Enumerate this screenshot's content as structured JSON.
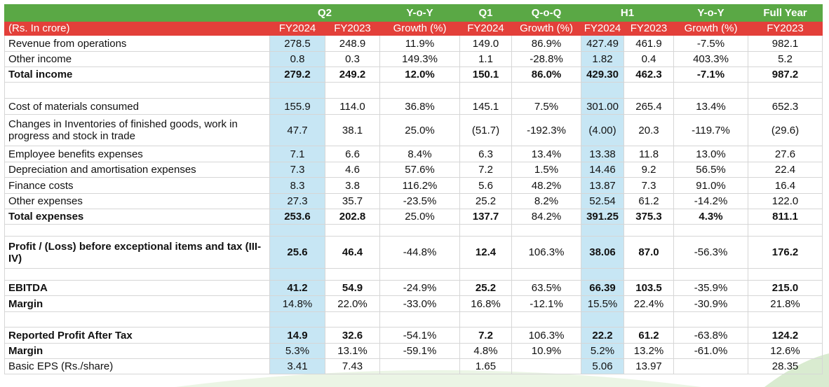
{
  "header": {
    "q2": "Q2",
    "yoy1": "Y-o-Y",
    "q1": "Q1",
    "qoq": "Q-o-Q",
    "h1": "H1",
    "yoy2": "Y-o-Y",
    "full_year": "Full Year"
  },
  "subheader": {
    "units": "(Rs. In crore)",
    "c1": "FY2024",
    "c2": "FY2023",
    "c3": "Growth (%)",
    "c4": "FY2024",
    "c5": "Growth (%)",
    "c6": "FY2024",
    "c7": "FY2023",
    "c8": "Growth (%)",
    "c9": "FY2023"
  },
  "colors": {
    "header_green": "#5aa845",
    "subheader_red": "#e3403a",
    "highlight_blue": "#c7e6f4"
  },
  "rows": [
    {
      "label": "Revenue from operations",
      "v": [
        "278.5",
        "248.9",
        "11.9%",
        "149.0",
        "86.9%",
        "427.49",
        "461.9",
        "-7.5%",
        "982.1"
      ]
    },
    {
      "label": "Other income",
      "v": [
        "0.8",
        "0.3",
        "149.3%",
        "1.1",
        "-28.8%",
        "1.82",
        "0.4",
        "403.3%",
        "5.2"
      ]
    },
    {
      "label": "Total income",
      "v": [
        "279.2",
        "249.2",
        "12.0%",
        "150.1",
        "86.0%",
        "429.30",
        "462.3",
        "-7.1%",
        "987.2"
      ]
    },
    {
      "label": "Cost of materials consumed",
      "v": [
        "155.9",
        "114.0",
        "36.8%",
        "145.1",
        "7.5%",
        "301.00",
        "265.4",
        "13.4%",
        "652.3"
      ]
    },
    {
      "label": "Changes in Inventories of finished goods,  work in progress and stock in trade",
      "v": [
        "47.7",
        "38.1",
        "25.0%",
        "(51.7)",
        "-192.3%",
        "(4.00)",
        "20.3",
        "-119.7%",
        "(29.6)"
      ]
    },
    {
      "label": "Employee benefits expenses",
      "v": [
        "7.1",
        "6.6",
        "8.4%",
        "6.3",
        "13.4%",
        "13.38",
        "11.8",
        "13.0%",
        "27.6"
      ]
    },
    {
      "label": "Depreciation and amortisation expenses",
      "v": [
        "7.3",
        "4.6",
        "57.6%",
        "7.2",
        "1.5%",
        "14.46",
        "9.2",
        "56.5%",
        "22.4"
      ]
    },
    {
      "label": "Finance costs",
      "v": [
        "8.3",
        "3.8",
        "116.2%",
        "5.6",
        "48.2%",
        "13.87",
        "7.3",
        "91.0%",
        "16.4"
      ]
    },
    {
      "label": "Other expenses",
      "v": [
        "27.3",
        "35.7",
        "-23.5%",
        "25.2",
        "8.2%",
        "52.54",
        "61.2",
        "-14.2%",
        "122.0"
      ]
    },
    {
      "label": "Total expenses",
      "v": [
        "253.6",
        "202.8",
        "25.0%",
        "137.7",
        "84.2%",
        "391.25",
        "375.3",
        "4.3%",
        "811.1"
      ]
    },
    {
      "label": "Profit / (Loss) before exceptional items and tax (III-IV)",
      "v": [
        "25.6",
        "46.4",
        "-44.8%",
        "12.4",
        "106.3%",
        "38.06",
        "87.0",
        "-56.3%",
        "176.2"
      ]
    },
    {
      "label": "EBITDA",
      "v": [
        "41.2",
        "54.9",
        "-24.9%",
        "25.2",
        "63.5%",
        "66.39",
        "103.5",
        "-35.9%",
        "215.0"
      ]
    },
    {
      "label": "Margin",
      "v": [
        "14.8%",
        "22.0%",
        "-33.0%",
        "16.8%",
        "-12.1%",
        "15.5%",
        "22.4%",
        "-30.9%",
        "21.8%"
      ]
    },
    {
      "label": "Reported Profit After Tax",
      "v": [
        "14.9",
        "32.6",
        "-54.1%",
        "7.2",
        "106.3%",
        "22.2",
        "61.2",
        "-63.8%",
        "124.2"
      ]
    },
    {
      "label": "Margin",
      "v": [
        "5.3%",
        "13.1%",
        "-59.1%",
        "4.8%",
        "10.9%",
        "5.2%",
        "13.2%",
        "-61.0%",
        "12.6%"
      ]
    },
    {
      "label": "Basic EPS (Rs./share)",
      "v": [
        "3.41",
        "7.43",
        "",
        "1.65",
        "",
        "5.06",
        "13.97",
        "",
        "28.35"
      ]
    }
  ]
}
